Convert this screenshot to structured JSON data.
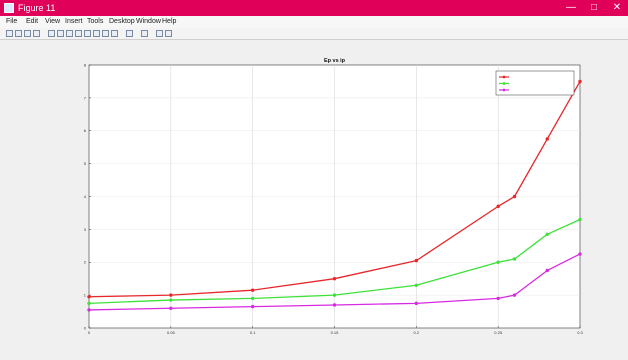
{
  "window": {
    "title": "Figure 11",
    "controls": {
      "minimize": "—",
      "maximize": "□",
      "close": "✕"
    }
  },
  "menubar": {
    "items": [
      "File",
      "Edit",
      "View",
      "Insert",
      "Tools",
      "Desktop",
      "Window",
      "Help"
    ]
  },
  "toolbar": {
    "icons": [
      "new-figure-icon",
      "open-icon",
      "save-icon",
      "print-icon",
      "pointer-icon",
      "zoom-in-icon",
      "zoom-out-icon",
      "pan-icon",
      "rotate-icon",
      "data-cursor-icon",
      "brush-icon",
      "link-icon",
      "colorbar-icon",
      "legend-icon",
      "hide-plot-tools-icon",
      "show-plot-tools-icon"
    ]
  },
  "colors": {
    "titlebar": "#e0005a",
    "series1": "#e8262b",
    "series2": "#3ee13a",
    "series3": "#d62be0"
  },
  "chart_data": {
    "type": "line",
    "title": "Ep vs ip",
    "xlabel": "",
    "ylabel": "",
    "x": [
      0,
      0.05,
      0.1,
      0.15,
      0.2,
      0.25,
      0.26,
      0.28,
      0.3
    ],
    "xticks": [
      0,
      0.05,
      0.1,
      0.15,
      0.2,
      0.25,
      0.3
    ],
    "xtick_labels": [
      "0",
      "0.05",
      "0.1",
      "0.15",
      "0.2",
      "0.25",
      "0.3"
    ],
    "xlim": [
      0,
      0.3
    ],
    "ylim": [
      0,
      8
    ],
    "yticks": [
      0,
      1,
      2,
      3,
      4,
      5,
      6,
      7,
      8
    ],
    "ytick_labels": [
      "0",
      "1",
      "2",
      "3",
      "4",
      "5",
      "6",
      "7",
      "8"
    ],
    "grid": true,
    "legend": "top-right",
    "series": [
      {
        "values": [
          0.95,
          1.0,
          1.15,
          1.5,
          2.05,
          3.7,
          4.0,
          5.75,
          7.5
        ]
      },
      {
        "values": [
          0.75,
          0.85,
          0.9,
          1.0,
          1.3,
          2.0,
          2.1,
          2.85,
          3.3
        ]
      },
      {
        "values": [
          0.55,
          0.6,
          0.65,
          0.7,
          0.75,
          0.9,
          1.0,
          1.75,
          2.25
        ]
      }
    ]
  }
}
